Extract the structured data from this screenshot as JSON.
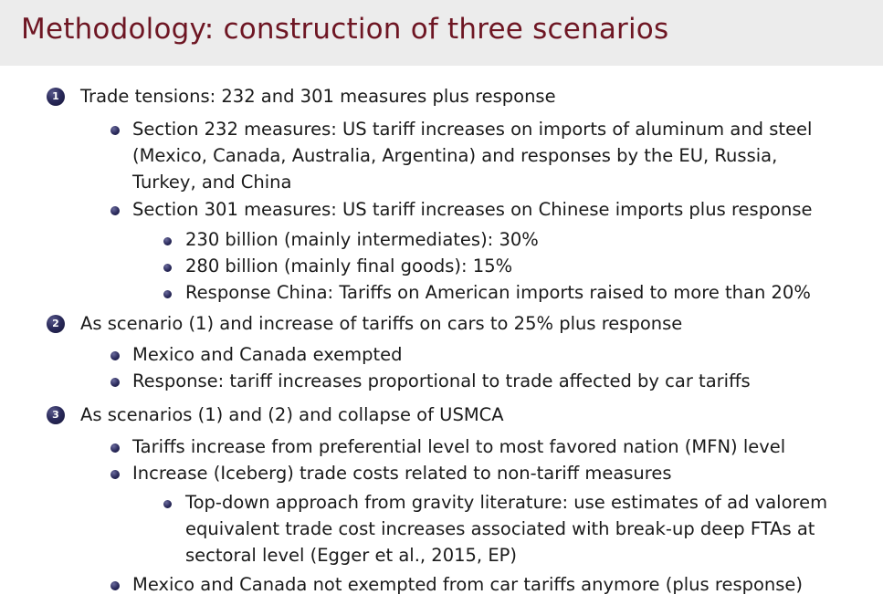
{
  "title": "Methodology: construction of three scenarios",
  "items": [
    {
      "number": "1",
      "text": "Trade tensions: 232 and 301 measures plus response",
      "sub": [
        {
          "lines": [
            "Section 232 measures: US tariff increases on imports of aluminum and steel",
            "(Mexico, Canada, Australia, Argentina) and responses by the EU, Russia,",
            "Turkey, and China"
          ]
        },
        {
          "lines": [
            "Section 301 measures: US tariff increases on Chinese imports plus response"
          ],
          "sub": [
            {
              "lines": [
                "230 billion (mainly intermediates): 30%"
              ]
            },
            {
              "lines": [
                "280 billion (mainly final goods): 15%"
              ]
            },
            {
              "lines": [
                "Response China: Tariffs on American imports raised to more than 20%"
              ]
            }
          ]
        }
      ]
    },
    {
      "number": "2",
      "text": "As scenario (1) and increase of tariffs on cars to 25% plus response",
      "sub": [
        {
          "lines": [
            "Mexico and Canada exempted"
          ]
        },
        {
          "lines": [
            "Response: tariff increases proportional to trade affected by car tariffs"
          ]
        }
      ]
    },
    {
      "number": "3",
      "text": "As scenarios (1) and (2) and collapse of USMCA",
      "sub": [
        {
          "lines": [
            "Tariffs increase from preferential level to most favored nation (MFN) level"
          ]
        },
        {
          "lines": [
            "Increase (Iceberg) trade costs related to non-tariff measures"
          ],
          "sub": [
            {
              "lines": [
                "Top-down approach from gravity literature: use estimates of ad valorem",
                "equivalent trade cost increases associated with break-up deep FTAs at",
                "sectoral level (Egger et al., 2015, EP)"
              ]
            }
          ]
        },
        {
          "lines": [
            "Mexico and Canada not exempted from car tariffs anymore (plus response)"
          ]
        }
      ]
    }
  ]
}
